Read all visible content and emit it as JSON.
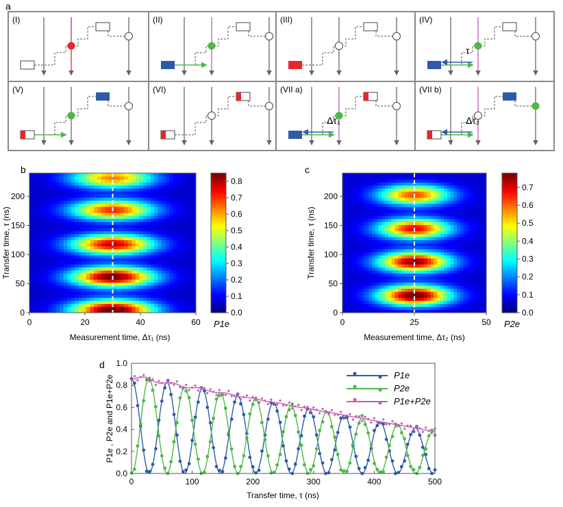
{
  "panel_labels": {
    "a": "a",
    "b": "b",
    "c": "c",
    "d": "d"
  },
  "panel_a": {
    "cells": [
      {
        "label": "(I)"
      },
      {
        "label": "(II)"
      },
      {
        "label": "(III)"
      },
      {
        "label": "(IV)",
        "annotation": "τ"
      },
      {
        "label": "(V)"
      },
      {
        "label": "(VI)"
      },
      {
        "label": "(VII a)",
        "annotation": "Δτ₁"
      },
      {
        "label": "(VII b)",
        "annotation": "Δτ₂"
      }
    ]
  },
  "colors": {
    "blue": "#2e5aa8",
    "green": "#4cb848",
    "red": "#e8262b",
    "magenta": "#c45db3",
    "frame": "#888888"
  },
  "chart_data": [
    {
      "type": "heatmap",
      "panel": "b",
      "xlabel": "Measurement time, Δτ₁   (ns)",
      "ylabel": "Transfer time, τ   (ns)",
      "xlim": [
        0,
        60
      ],
      "ylim": [
        0,
        240
      ],
      "xticks": [
        0,
        20,
        40,
        60
      ],
      "yticks": [
        0,
        50,
        100,
        150,
        200
      ],
      "dashed_x": 30,
      "peak_center_x": 30,
      "peak_y": [
        5,
        62,
        118,
        177,
        232
      ],
      "peak_values": [
        0.85,
        0.82,
        0.74,
        0.66,
        0.58
      ],
      "colorbar": {
        "label": "P1e",
        "min": 0,
        "max": 0.85,
        "ticks": [
          0,
          0.1,
          0.2,
          0.3,
          0.4,
          0.5,
          0.6,
          0.7,
          0.8
        ]
      }
    },
    {
      "type": "heatmap",
      "panel": "c",
      "xlabel": "Measurement time, Δτ₂   (ns)",
      "ylabel": "Transfer time, τ   (ns)",
      "xlim": [
        0,
        50
      ],
      "ylim": [
        0,
        240
      ],
      "xticks": [
        0,
        25,
        50
      ],
      "yticks": [
        0,
        50,
        100,
        150,
        200
      ],
      "dashed_x": 25,
      "peak_center_x": 25,
      "peak_y": [
        30,
        88,
        145,
        203
      ],
      "peak_values": [
        0.76,
        0.72,
        0.64,
        0.57
      ],
      "colorbar": {
        "label": "P2e",
        "min": 0,
        "max": 0.78,
        "ticks": [
          0,
          0.1,
          0.2,
          0.3,
          0.4,
          0.5,
          0.6,
          0.7
        ]
      }
    },
    {
      "type": "line",
      "panel": "d",
      "xlabel": "Transfer time, τ    (ns)",
      "ylabel": "P1e , P2e and P1e+P2e",
      "xlim": [
        0,
        500
      ],
      "ylim": [
        0,
        1.0
      ],
      "xticks": [
        0,
        100,
        200,
        300,
        400,
        500
      ],
      "yticks": [
        0,
        0.2,
        0.4,
        0.6,
        0.8,
        1.0
      ],
      "period_ns": 58.5,
      "series": [
        {
          "name": "P1e",
          "color": "#2e5aa8",
          "model": "P1e",
          "start": 0.86,
          "decay_ns": 450
        },
        {
          "name": "P2e",
          "color": "#4cb848",
          "model": "P2e",
          "start": 0.0
        },
        {
          "name": "P1e+P2e",
          "color": "#c45db3",
          "model": "sum",
          "start": 0.88,
          "end": 0.38
        }
      ],
      "legend": {
        "position": "top-right",
        "entries": [
          "P1e",
          "P2e",
          "P1e+P2e"
        ]
      }
    }
  ]
}
